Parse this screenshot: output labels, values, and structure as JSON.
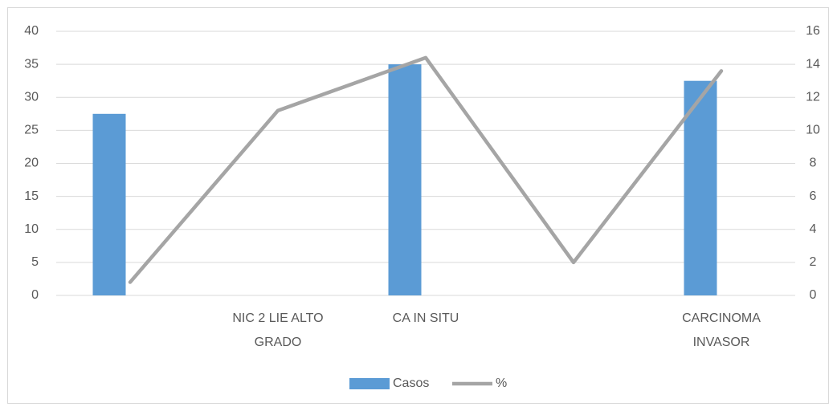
{
  "chart_data": {
    "type": "bar",
    "categories": [
      null,
      "NIC 2 LIE ALTO GRADO",
      "CA IN SITU",
      null,
      "CARCINOMA INVASOR"
    ],
    "series": [
      {
        "name": "Casos",
        "color": "#5b9bd5",
        "type": "bar",
        "values": [
          27.5,
          null,
          35,
          null,
          32.5
        ]
      },
      {
        "name": "%",
        "color": "#a5a5a5",
        "type": "line",
        "axis": "y2",
        "values": [
          0.8,
          11.2,
          14.4,
          2.0,
          13.6
        ]
      }
    ],
    "ylim": [
      0,
      40
    ],
    "yticks": [
      0,
      5,
      10,
      15,
      20,
      25,
      30,
      35,
      40
    ],
    "y2lim": [
      0,
      16
    ],
    "y2ticks": [
      0,
      2,
      4,
      6,
      8,
      10,
      12,
      14,
      16
    ],
    "grid": true,
    "legend": "bottom"
  }
}
